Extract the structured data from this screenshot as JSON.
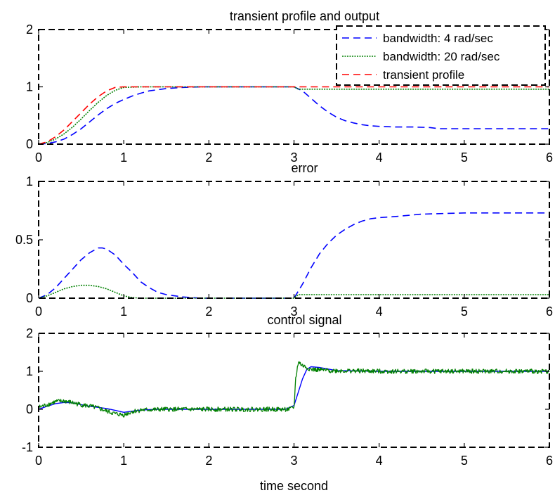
{
  "chart_data": [
    {
      "type": "line",
      "title": "transient profile and output",
      "xlabel": "",
      "ylabel": "",
      "xlim": [
        0,
        6
      ],
      "ylim": [
        0,
        2
      ],
      "xticks": [
        "0",
        "1",
        "2",
        "3",
        "4",
        "5",
        "6"
      ],
      "yticks": [
        "0",
        "1",
        "2"
      ],
      "legend": {
        "position": "top-right",
        "entries": [
          "bandwidth: 4 rad/sec",
          "bandwidth: 20 rad/sec",
          "transient profile"
        ]
      },
      "series": [
        {
          "name": "bandwidth: 4 rad/sec",
          "color": "#0000ff",
          "style": "dashed-step",
          "x": [
            0,
            0.1,
            0.2,
            0.3,
            0.4,
            0.5,
            0.6,
            0.7,
            0.8,
            0.9,
            1.0,
            1.1,
            1.2,
            1.3,
            1.4,
            1.5,
            1.6,
            1.7,
            1.8,
            1.9,
            2.0,
            2.2,
            2.4,
            2.6,
            2.8,
            3.0,
            3.1,
            3.2,
            3.3,
            3.4,
            3.5,
            3.6,
            3.7,
            3.8,
            3.9,
            4.0,
            4.2,
            4.4,
            4.6,
            4.7,
            5.0,
            5.5,
            6.0
          ],
          "y": [
            0,
            0.01,
            0.04,
            0.09,
            0.17,
            0.27,
            0.39,
            0.51,
            0.62,
            0.71,
            0.78,
            0.84,
            0.89,
            0.93,
            0.95,
            0.97,
            0.98,
            0.99,
            0.995,
            1.0,
            1.0,
            1.0,
            1.0,
            1.0,
            1.0,
            1.0,
            0.93,
            0.8,
            0.67,
            0.56,
            0.47,
            0.41,
            0.37,
            0.34,
            0.32,
            0.31,
            0.3,
            0.3,
            0.29,
            0.27,
            0.27,
            0.27,
            0.27
          ]
        },
        {
          "name": "bandwidth: 20 rad/sec",
          "color": "#008000",
          "style": "dotted-step",
          "x": [
            0,
            0.1,
            0.2,
            0.3,
            0.4,
            0.5,
            0.6,
            0.7,
            0.8,
            0.9,
            1.0,
            1.2,
            1.5,
            2.0,
            2.5,
            3.0,
            3.05,
            3.5,
            4.0,
            5.0,
            6.0
          ],
          "y": [
            0,
            0.03,
            0.09,
            0.18,
            0.3,
            0.44,
            0.59,
            0.73,
            0.85,
            0.94,
            0.99,
            1.0,
            1.0,
            1.0,
            1.0,
            1.0,
            0.96,
            0.96,
            0.96,
            0.96,
            0.96
          ]
        },
        {
          "name": "transient profile",
          "color": "#ff0000",
          "style": "dashed",
          "x": [
            0,
            0.1,
            0.2,
            0.3,
            0.4,
            0.5,
            0.6,
            0.7,
            0.8,
            0.9,
            1.0,
            2.0,
            3.0,
            4.0,
            5.0,
            6.0
          ],
          "y": [
            0,
            0.04,
            0.13,
            0.25,
            0.4,
            0.55,
            0.7,
            0.83,
            0.93,
            0.99,
            1.0,
            1.0,
            1.0,
            1.0,
            1.0,
            1.0
          ]
        }
      ]
    },
    {
      "type": "line",
      "title": "error",
      "xlabel": "",
      "ylabel": "",
      "xlim": [
        0,
        6
      ],
      "ylim": [
        0,
        1
      ],
      "xticks": [
        "0",
        "1",
        "2",
        "3",
        "4",
        "5",
        "6"
      ],
      "yticks": [
        "0",
        "0.5",
        "1"
      ],
      "series": [
        {
          "name": "bandwidth: 4 rad/sec",
          "color": "#0000ff",
          "style": "dashed-step",
          "x": [
            0,
            0.1,
            0.2,
            0.3,
            0.4,
            0.5,
            0.6,
            0.7,
            0.75,
            0.8,
            0.9,
            1.0,
            1.1,
            1.2,
            1.3,
            1.4,
            1.5,
            1.6,
            1.7,
            1.8,
            1.9,
            2.0,
            2.5,
            3.0,
            3.1,
            3.2,
            3.3,
            3.4,
            3.5,
            3.6,
            3.7,
            3.8,
            3.9,
            4.0,
            4.2,
            4.5,
            5.0,
            5.5,
            6.0
          ],
          "y": [
            0,
            0.03,
            0.09,
            0.17,
            0.25,
            0.33,
            0.39,
            0.43,
            0.43,
            0.42,
            0.37,
            0.29,
            0.22,
            0.14,
            0.09,
            0.05,
            0.03,
            0.02,
            0.01,
            0.005,
            0,
            0,
            0,
            0,
            0.12,
            0.26,
            0.38,
            0.47,
            0.54,
            0.59,
            0.63,
            0.66,
            0.68,
            0.69,
            0.7,
            0.72,
            0.73,
            0.73,
            0.73
          ]
        },
        {
          "name": "bandwidth: 20 rad/sec",
          "color": "#008000",
          "style": "dotted-step",
          "x": [
            0,
            0.1,
            0.2,
            0.3,
            0.4,
            0.5,
            0.6,
            0.7,
            0.8,
            0.9,
            1.0,
            1.1,
            1.2,
            1.5,
            2.0,
            2.5,
            3.0,
            3.05,
            3.5,
            4.0,
            5.0,
            6.0
          ],
          "y": [
            0,
            0.02,
            0.05,
            0.08,
            0.1,
            0.11,
            0.11,
            0.1,
            0.08,
            0.05,
            0.02,
            0.005,
            0,
            0,
            0,
            0,
            0,
            0.03,
            0.03,
            0.03,
            0.03,
            0.03
          ]
        }
      ]
    },
    {
      "type": "line",
      "title": "control signal",
      "xlabel": "time second",
      "ylabel": "",
      "xlim": [
        0,
        6
      ],
      "ylim": [
        -1,
        2
      ],
      "xticks": [
        "0",
        "1",
        "2",
        "3",
        "4",
        "5",
        "6"
      ],
      "yticks": [
        "-1",
        "0",
        "1",
        "2"
      ],
      "series": [
        {
          "name": "bandwidth: 4 rad/sec",
          "color": "#0000ff",
          "style": "solid",
          "x": [
            0,
            0.1,
            0.2,
            0.3,
            0.4,
            0.5,
            0.6,
            0.7,
            0.8,
            0.9,
            1.0,
            1.1,
            1.2,
            1.4,
            1.6,
            2.0,
            2.5,
            2.9,
            3.0,
            3.05,
            3.1,
            3.15,
            3.2,
            3.3,
            3.5,
            4.0,
            5.0,
            6.0
          ],
          "y": [
            0,
            0.08,
            0.15,
            0.18,
            0.17,
            0.12,
            0.08,
            0.05,
            0.02,
            -0.03,
            -0.08,
            -0.05,
            -0.02,
            0,
            0,
            0,
            0,
            0,
            0.1,
            0.45,
            0.8,
            1.05,
            1.12,
            1.1,
            1.02,
            1.0,
            1.0,
            1.0
          ]
        },
        {
          "name": "bandwidth: 20 rad/sec",
          "color": "#008000",
          "style": "solid-noisy",
          "noise_amplitude": 0.06,
          "x": [
            0,
            0.1,
            0.2,
            0.3,
            0.4,
            0.5,
            0.6,
            0.7,
            0.8,
            0.9,
            1.0,
            1.1,
            1.2,
            1.5,
            2.0,
            2.5,
            2.95,
            3.0,
            3.02,
            3.05,
            3.1,
            3.2,
            3.4,
            4.0,
            5.0,
            6.0
          ],
          "y": [
            0.05,
            0.12,
            0.2,
            0.22,
            0.17,
            0.12,
            0.08,
            0.03,
            -0.05,
            -0.12,
            -0.15,
            -0.06,
            -0.02,
            0,
            0,
            0,
            0,
            0.05,
            0.8,
            1.25,
            1.15,
            1.05,
            1.02,
            1.0,
            1.0,
            1.0
          ]
        }
      ]
    }
  ]
}
